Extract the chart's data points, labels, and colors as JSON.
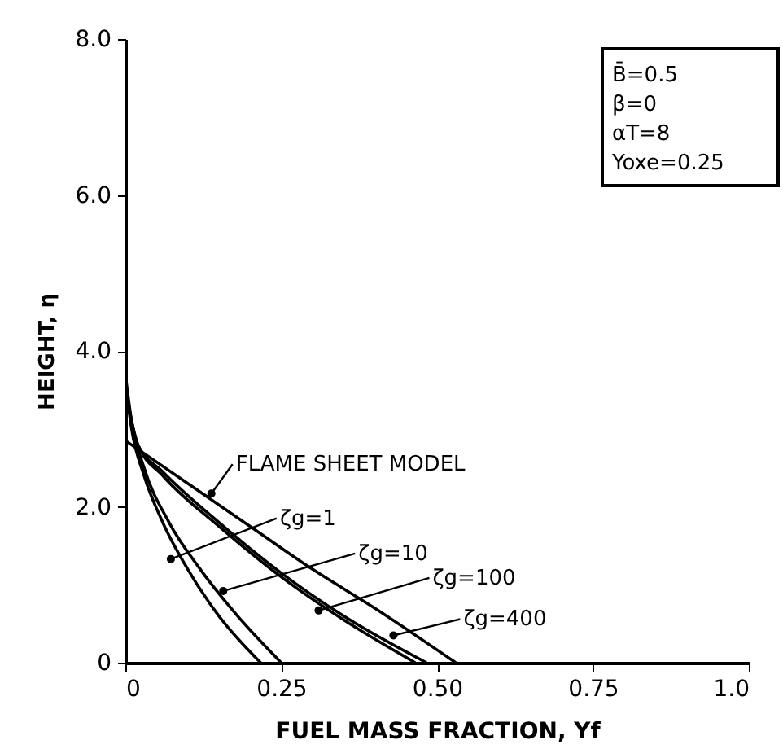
{
  "chart_data": {
    "type": "line",
    "xlabel": "FUEL MASS FRACTION, Yf",
    "ylabel": "HEIGHT, η",
    "xlim": [
      0,
      1.0
    ],
    "ylim": [
      0,
      8.0
    ],
    "xticks": [
      0,
      {
        "value": 0.25,
        "label": "0.25"
      },
      {
        "value": 0.5,
        "label": "0.50"
      },
      {
        "value": 0.75,
        "label": "0.75"
      },
      {
        "value": 1.0,
        "label": "1.0"
      }
    ],
    "yticks": [
      0,
      {
        "value": 2,
        "label": "2.0"
      },
      {
        "value": 4,
        "label": "4.0"
      },
      {
        "value": 6,
        "label": "6.0"
      },
      {
        "value": 8,
        "label": "8.0"
      }
    ],
    "grid": false,
    "marker": "none",
    "line_style": "solid",
    "series": [
      {
        "color": "#000000",
        "x": [
          0,
          0.01,
          0.03,
          0.06,
          0.1,
          0.15,
          0.217
        ],
        "values": [
          3.6,
          3.0,
          2.4,
          1.8,
          1.2,
          0.6,
          0
        ]
      },
      {
        "color": "#000000",
        "x": [
          0,
          0.01,
          0.03,
          0.07,
          0.12,
          0.18,
          0.25
        ],
        "values": [
          3.7,
          3.1,
          2.5,
          1.8,
          1.2,
          0.6,
          0
        ]
      },
      {
        "color": "#000000",
        "x": [
          0,
          0.02,
          0.06,
          0.15,
          0.25,
          0.35,
          0.465
        ],
        "values": [
          3.5,
          2.8,
          2.4,
          1.75,
          1.1,
          0.55,
          0
        ]
      },
      {
        "color": "#000000",
        "x": [
          0,
          0.02,
          0.06,
          0.15,
          0.25,
          0.35,
          0.483
        ],
        "values": [
          3.5,
          2.8,
          2.45,
          1.8,
          1.15,
          0.6,
          0
        ]
      },
      {
        "color": "#000000",
        "x": [
          0,
          0.1,
          0.2,
          0.3,
          0.4,
          0.53
        ],
        "values": [
          2.85,
          2.3,
          1.75,
          1.2,
          0.7,
          0
        ]
      }
    ],
    "annotations": [
      {
        "text": "FLAME SHEET MODEL",
        "x": 0.138,
        "y": 2.17
      },
      {
        "text": "ζg=1",
        "x": 0.073,
        "y": 1.33
      },
      {
        "text": "ζg=10",
        "x": 0.157,
        "y": 0.92
      },
      {
        "text": "ζg=100",
        "x": 0.31,
        "y": 0.67
      },
      {
        "text": "ζg=400",
        "x": 0.43,
        "y": 0.35
      },
      "B̄=0.5",
      "β=0",
      "αT=8",
      "Yoxe=0.25"
    ]
  }
}
